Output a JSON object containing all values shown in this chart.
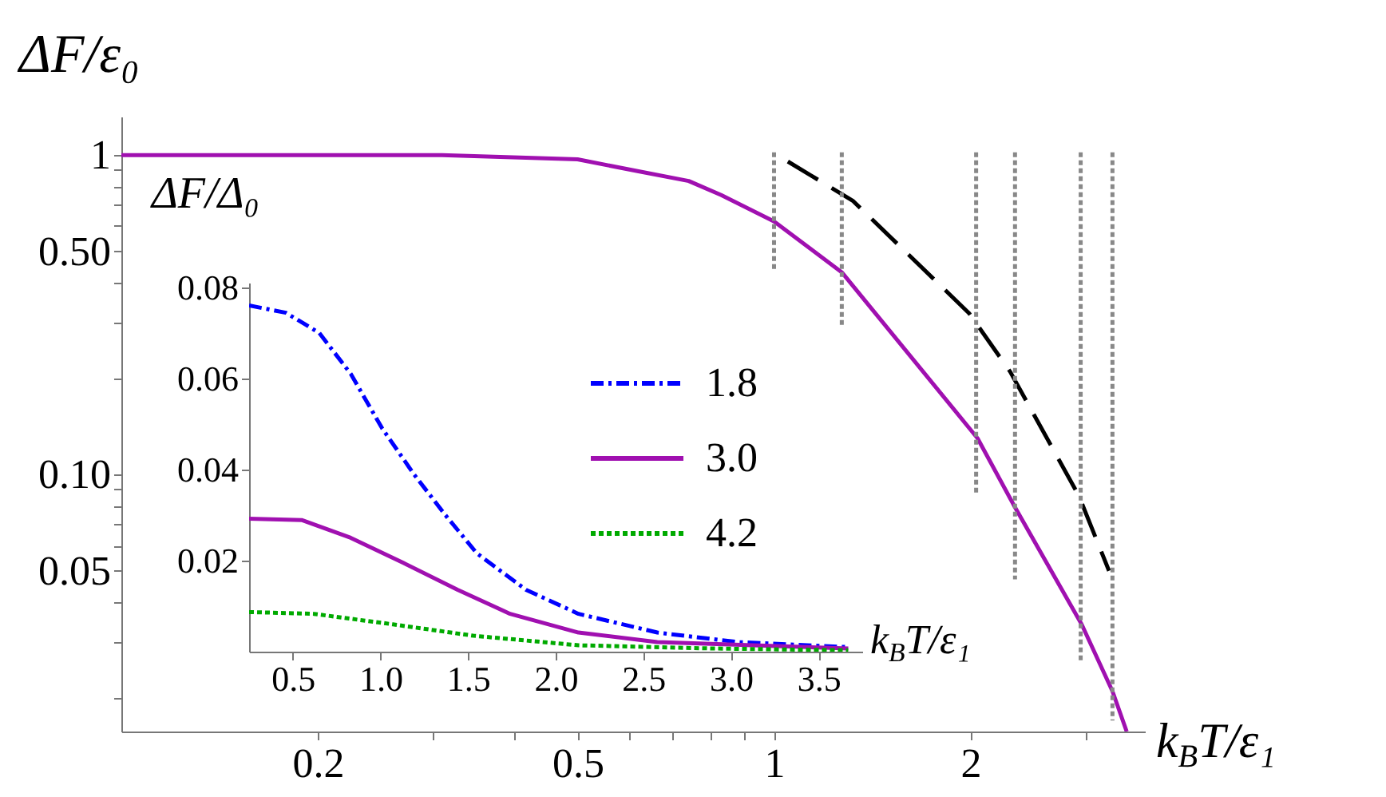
{
  "chart_data": [
    {
      "type": "line",
      "xlabel": "k$_{B}$T/ε₁",
      "ylabel": "ΔF/ε₀",
      "log": "xy",
      "xlim": [
        0.1,
        3.7
      ],
      "ylim": [
        0.0157,
        1.32
      ],
      "xticks": [
        0.2,
        {
          "value": 0.3,
          "label": null
        },
        {
          "value": 0.4,
          "label": null
        },
        0.5,
        {
          "value": 0.6,
          "label": null
        },
        {
          "value": 0.7,
          "label": null
        },
        {
          "value": 0.8,
          "label": null
        },
        {
          "value": 0.9,
          "label": null
        },
        1,
        2,
        {
          "value": 3,
          "label": null
        }
      ],
      "yticks": [
        {
          "value": 0.02,
          "label": null
        },
        {
          "value": 0.03,
          "label": null
        },
        {
          "value": 0.04,
          "label": null
        },
        {
          "value": 0.05,
          "label": "0.05"
        },
        {
          "value": 0.06,
          "label": null
        },
        {
          "value": 0.07,
          "label": null
        },
        {
          "value": 0.08,
          "label": null
        },
        {
          "value": 0.09,
          "label": null
        },
        {
          "value": 0.1,
          "label": "0.10"
        },
        {
          "value": 0.2,
          "label": null
        },
        {
          "value": 0.3,
          "label": null
        },
        {
          "value": 0.4,
          "label": null
        },
        {
          "value": 0.5,
          "label": "0.50"
        },
        {
          "value": 0.6,
          "label": null
        },
        {
          "value": 0.7,
          "label": null
        },
        {
          "value": 0.8,
          "label": null
        },
        {
          "value": 0.9,
          "label": null
        },
        1
      ],
      "series": [
        {
          "color": "#a010b0",
          "line_style": "solid",
          "x": [
            0.1,
            0.31,
            0.5,
            0.62,
            0.74,
            0.83,
            1.0,
            1.27,
            2.05,
            2.34,
            2.96,
            3.3,
            3.47
          ],
          "values": [
            1,
            1,
            0.97,
            0.89,
            0.83,
            0.75,
            0.62,
            0.43,
            0.13,
            0.079,
            0.034,
            0.021,
            0.0157
          ]
        },
        {
          "color": "#000000",
          "line_style": "dashed",
          "x": [
            1.05,
            1.32,
            1.99,
            2.3,
            2.93,
            3.26
          ],
          "values": [
            0.955,
            0.72,
            0.32,
            0.21,
            0.086,
            0.05
          ]
        },
        {
          "color": "#888888",
          "line_style": "dotted",
          "x": [
            1.0,
            1.0
          ],
          "values": [
            1.02,
            0.44
          ]
        },
        {
          "color": "#888888",
          "line_style": "dotted",
          "x": [
            1.27,
            1.27
          ],
          "values": [
            1.02,
            0.29
          ]
        },
        {
          "color": "#888888",
          "line_style": "dotted",
          "x": [
            2.04,
            2.04
          ],
          "values": [
            1.02,
            0.086
          ]
        },
        {
          "color": "#888888",
          "line_style": "dotted",
          "x": [
            2.34,
            2.34
          ],
          "values": [
            1.02,
            0.047
          ]
        },
        {
          "color": "#888888",
          "line_style": "dotted",
          "x": [
            2.95,
            2.95
          ],
          "values": [
            1.02,
            0.026
          ]
        },
        {
          "color": "#888888",
          "line_style": "dotted",
          "x": [
            3.3,
            3.3
          ],
          "values": [
            1.02,
            0.017
          ]
        }
      ]
    },
    {
      "type": "line",
      "xlabel": "k$_{B}$T/ε₁",
      "ylabel": "ΔF/Δ₀",
      "legend": "top right",
      "xlim": [
        0.25,
        3.75
      ],
      "ylim": [
        0,
        0.081
      ],
      "xticks": [
        0.5,
        {
          "value": 1,
          "label": "1.0"
        },
        1.5,
        {
          "value": 2,
          "label": "2.0"
        },
        2.5,
        {
          "value": 3,
          "label": "3.0"
        },
        3.5
      ],
      "yticks": [
        0.02,
        0.04,
        0.06,
        0.08
      ],
      "series": [
        {
          "name": "1.8",
          "color": "#0000ff",
          "line_style": "dashed",
          "x": [
            0.25,
            0.46,
            0.65,
            0.83,
            1.01,
            1.19,
            1.37,
            1.55,
            1.83,
            2.13,
            2.58,
            3.04,
            3.67
          ],
          "values": [
            0.076,
            0.0744,
            0.07,
            0.061,
            0.049,
            0.039,
            0.03,
            0.0216,
            0.0136,
            0.0083,
            0.0042,
            0.0021,
            0.001
          ]
        },
        {
          "name": "3.0",
          "color": "#a010b0",
          "line_style": "solid",
          "x": [
            0.25,
            0.55,
            0.83,
            1.13,
            1.44,
            1.74,
            2.13,
            2.58,
            3.67
          ],
          "values": [
            0.0292,
            0.0289,
            0.025,
            0.0195,
            0.0136,
            0.0083,
            0.0042,
            0.0021,
            0.0007
          ]
        },
        {
          "name": "4.2",
          "color": "#00aa00",
          "line_style": "dotted",
          "x": [
            0.25,
            0.62,
            1.07,
            1.53,
            2.13,
            2.89,
            3.67
          ],
          "values": [
            0.0087,
            0.0083,
            0.006,
            0.0035,
            0.0014,
            0.0007,
            0.0003
          ]
        }
      ]
    }
  ]
}
